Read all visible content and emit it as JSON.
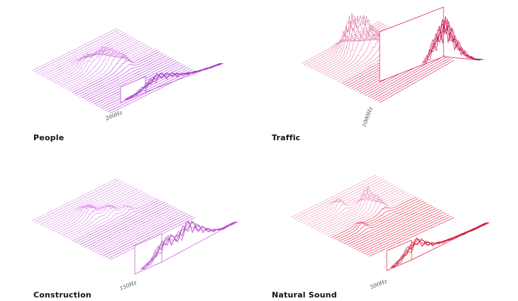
{
  "panels": [
    {
      "id": "people",
      "title": "People",
      "frequency": "200Hz",
      "colors": {
        "back": "#d07be0",
        "front": "#b43cd6",
        "peak": "#8a2ab8"
      },
      "peaks": [
        {
          "gx": 0.3,
          "gy": 0.38,
          "h": 18,
          "w": 0.07
        },
        {
          "gx": 0.36,
          "gy": 0.5,
          "h": 22,
          "w": 0.08
        },
        {
          "gx": 0.44,
          "gy": 0.55,
          "h": 16,
          "w": 0.07
        },
        {
          "gx": 0.5,
          "gy": 0.62,
          "h": 14,
          "w": 0.06
        }
      ],
      "spectrum_heights": [
        2,
        3,
        4,
        6,
        9,
        12,
        16,
        20,
        24,
        26,
        25,
        22,
        20,
        18,
        15,
        12,
        10,
        8,
        6,
        5,
        4,
        3,
        2,
        2,
        1,
        1,
        1,
        1
      ]
    },
    {
      "id": "traffic",
      "title": "Traffic",
      "frequency": "1000Hz",
      "colors": {
        "back": "#e07aa8",
        "front": "#d4145a",
        "peak": "#b0104a"
      },
      "peaks": [
        {
          "gx": 0.2,
          "gy": 0.45,
          "h": 55,
          "w": 0.08
        },
        {
          "gx": 0.28,
          "gy": 0.55,
          "h": 45,
          "w": 0.07
        },
        {
          "gx": 0.35,
          "gy": 0.65,
          "h": 25,
          "w": 0.08
        }
      ],
      "spectrum_heights": [
        4,
        8,
        14,
        22,
        30,
        38,
        44,
        50,
        58,
        64,
        68,
        62,
        55,
        48,
        40,
        34,
        28,
        22,
        18,
        14,
        10,
        8,
        6,
        4,
        3,
        2,
        2,
        1
      ]
    },
    {
      "id": "construction",
      "title": "Construction",
      "frequency": "150Hz",
      "colors": {
        "back": "#d684e2",
        "front": "#c050d2",
        "peak": "#9a35b0"
      },
      "peaks": [
        {
          "gx": 0.3,
          "gy": 0.4,
          "h": 16,
          "w": 0.08
        },
        {
          "gx": 0.4,
          "gy": 0.55,
          "h": 12,
          "w": 0.06
        },
        {
          "gx": 0.48,
          "gy": 0.68,
          "h": 6,
          "w": 0.05
        }
      ],
      "spectrum_heights": [
        1,
        2,
        3,
        5,
        8,
        11,
        13,
        14,
        15,
        13,
        12,
        14,
        16,
        18,
        17,
        15,
        12,
        10,
        8,
        6,
        4,
        3,
        2,
        1,
        1,
        1,
        1,
        1
      ]
    },
    {
      "id": "natural",
      "title": "Natural Sound",
      "frequency": "500Hz",
      "colors": {
        "back": "#ea90b8",
        "front": "#e01838",
        "peak": "#c01030"
      },
      "peaks": [
        {
          "gx": 0.18,
          "gy": 0.4,
          "h": 14,
          "w": 0.05
        },
        {
          "gx": 0.34,
          "gy": 0.58,
          "h": 28,
          "w": 0.05
        },
        {
          "gx": 0.44,
          "gy": 0.62,
          "h": 18,
          "w": 0.06
        },
        {
          "gx": 0.58,
          "gy": 0.3,
          "h": 8,
          "w": 0.05
        }
      ],
      "spectrum_heights": [
        2,
        4,
        8,
        14,
        20,
        26,
        30,
        34,
        30,
        24,
        18,
        14,
        10,
        8,
        6,
        5,
        4,
        3,
        3,
        2,
        2,
        2,
        1,
        1,
        1,
        1,
        1,
        1
      ]
    }
  ]
}
